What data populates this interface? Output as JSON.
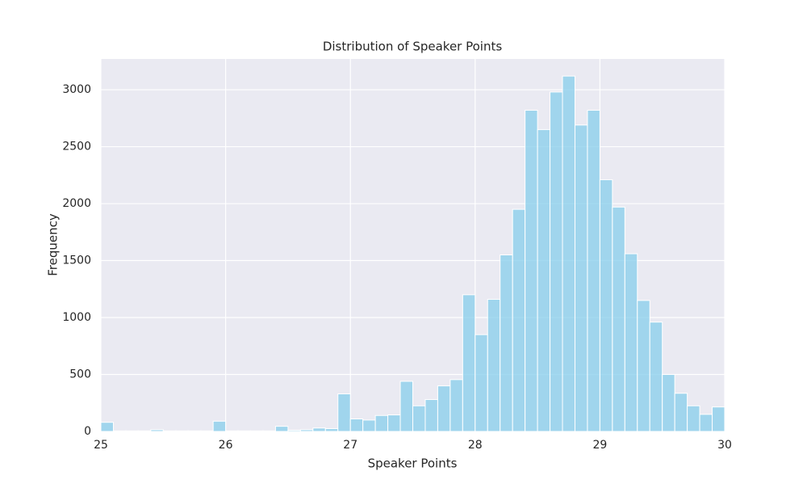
{
  "chart_data": {
    "type": "histogram",
    "title": "Distribution of Speaker Points",
    "xlabel": "Speaker Points",
    "ylabel": "Frequency",
    "bins": [
      25,
      25.1,
      25.2,
      25.3,
      25.4,
      25.5,
      25.6,
      25.7,
      25.8,
      25.9,
      26,
      26.1,
      26.2,
      26.3,
      26.4,
      26.5,
      26.6,
      26.7,
      26.8,
      26.9,
      27,
      27.1,
      27.2,
      27.3,
      27.4,
      27.5,
      27.6,
      27.7,
      27.8,
      27.9,
      28,
      28.1,
      28.2,
      28.3,
      28.4,
      28.5,
      28.6,
      28.7,
      28.8,
      28.9,
      29,
      29.1,
      29.2,
      29.3,
      29.4,
      29.5,
      29.6,
      29.7,
      29.8,
      29.9,
      30
    ],
    "values": [
      80,
      5,
      5,
      5,
      15,
      5,
      5,
      5,
      5,
      90,
      5,
      5,
      5,
      5,
      45,
      10,
      15,
      30,
      25,
      330,
      110,
      100,
      140,
      145,
      440,
      225,
      280,
      400,
      455,
      1200,
      850,
      1160,
      1550,
      1950,
      2820,
      2650,
      2980,
      3120,
      2690,
      2820,
      2210,
      1970,
      1560,
      1150,
      960,
      500,
      335,
      225,
      150,
      215
    ],
    "color": "#87ceeb",
    "xlim": [
      25,
      30
    ],
    "xticks": [
      25,
      26,
      27,
      28,
      29,
      30
    ],
    "ylim": [
      0,
      3270
    ],
    "yticks": [
      0,
      500,
      1000,
      1500,
      2000,
      2500,
      3000
    ],
    "grid": true
  }
}
